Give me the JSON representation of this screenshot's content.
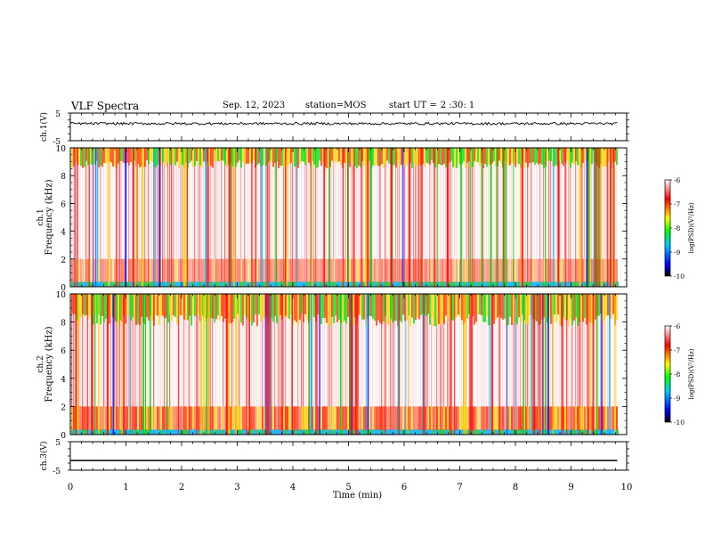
{
  "header": {
    "title": "VLF Spectra",
    "date": "Sep. 12, 2023",
    "station": "station=MOS",
    "start_label": "start UT =",
    "start_time": "2 :30: 1"
  },
  "chart_data": [
    {
      "type": "line",
      "panel": "ch1-waveform",
      "ylabel": "ch.1(V)",
      "ylim": [
        -5,
        5
      ],
      "yticks": [
        "5",
        "-5"
      ],
      "x": [
        0,
        9.83
      ],
      "series": [
        {
          "values": [
            1.2,
            1.2
          ]
        }
      ],
      "style": "noisy"
    },
    {
      "type": "heatmap",
      "panel": "ch1-spectrogram",
      "ylabel_line1": "ch.1",
      "ylabel_line2": "Frequency (kHz)",
      "ylim": [
        0,
        10
      ],
      "yticks": [
        "0",
        "2",
        "4",
        "6",
        "8",
        "10"
      ],
      "xlim": [
        0,
        10
      ],
      "colorbar": {
        "label": "log(PSD)(V²/Hz)",
        "range": [
          -10,
          -6
        ],
        "ticks": [
          "-6",
          "-7",
          "-8",
          "-9",
          "-10"
        ]
      }
    },
    {
      "type": "heatmap",
      "panel": "ch2-spectrogram",
      "ylabel_line1": "ch.2",
      "ylabel_line2": "Frequency (kHz)",
      "ylim": [
        0,
        10
      ],
      "yticks": [
        "0",
        "2",
        "4",
        "6",
        "8",
        "10"
      ],
      "xlim": [
        0,
        10
      ],
      "colorbar": {
        "label": "log(PSD)(V²/Hz)",
        "range": [
          -10,
          -6
        ],
        "ticks": [
          "-6",
          "-7",
          "-8",
          "-9",
          "-10"
        ]
      }
    },
    {
      "type": "line",
      "panel": "ch3-waveform",
      "ylabel": "ch.3(V)",
      "ylim": [
        -5,
        5
      ],
      "yticks": [
        "5",
        "-5"
      ],
      "x": [
        0,
        9.83
      ],
      "series": [
        {
          "values": [
            -1.6,
            -1.6
          ]
        }
      ],
      "style": "flat"
    }
  ],
  "xaxis": {
    "label": "Time (min)",
    "ticks": [
      "0",
      "1",
      "2",
      "3",
      "4",
      "5",
      "6",
      "7",
      "8",
      "9",
      "10"
    ],
    "range": [
      0,
      10
    ]
  },
  "colors": {
    "colormap": [
      "#000000",
      "#0000ff",
      "#00c8ff",
      "#00ff00",
      "#ffff00",
      "#ff0000",
      "#ffffff"
    ]
  }
}
